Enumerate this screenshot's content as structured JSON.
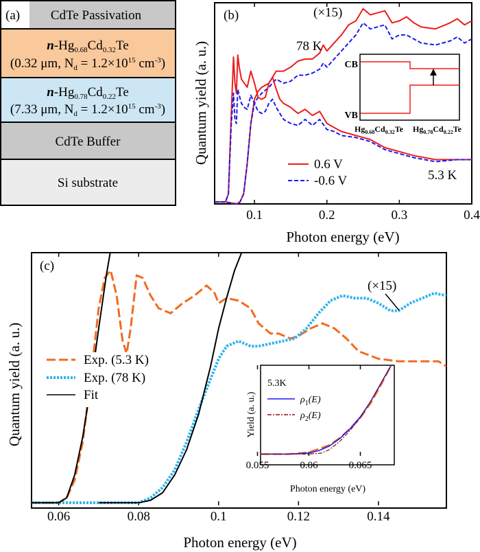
{
  "panel_a": {
    "label": "(a)",
    "layers": [
      {
        "name": "CdTe Passivation",
        "color": "#c8c8c8"
      },
      {
        "prefix": "n",
        "name_parts": [
          "-Hg",
          "0.68",
          "Cd",
          "0.32",
          "Te"
        ],
        "detail_parts": [
          "(0.32 μm, N",
          "d",
          " = 1.2×10",
          "15",
          " cm",
          "-3",
          ")"
        ],
        "color": "#f9c89b"
      },
      {
        "prefix": "n",
        "name_parts": [
          "-Hg",
          "0.78",
          "Cd",
          "0.22",
          "Te"
        ],
        "detail_parts": [
          "(7.33 μm, N",
          "d",
          " = 1.2×10",
          "15",
          " cm",
          "-3",
          ")"
        ],
        "color": "#cde6f4"
      },
      {
        "name": "CdTe Buffer",
        "color": "#c8c8c8"
      },
      {
        "name": "Si substrate",
        "color": "#ececec"
      }
    ]
  },
  "chart_data": [
    {
      "id": "b",
      "type": "line",
      "panel_label": "(b)",
      "xlabel": "Photon energy (eV)",
      "ylabel": "Quantum yield (a. u.)",
      "xlim": [
        0.045,
        0.4
      ],
      "ylim": [
        0,
        1
      ],
      "xticks": [
        "0.1",
        "0.2",
        "0.3",
        "0.4"
      ],
      "xtick_values": [
        0.1,
        0.2,
        0.3,
        0.4
      ],
      "annotations": {
        "scale": "(×15)",
        "t78": "78 K",
        "t53": "5.3 K"
      },
      "legend": {
        "placement": "bottom-center",
        "entries": [
          "0.6 V",
          "-0.6 V"
        ]
      },
      "colors": {
        "pos": "#ee1c1c",
        "neg": "#1a1aee"
      },
      "series": [
        {
          "name": "0.6 V",
          "group": "78 K",
          "style": "solid",
          "color": "#ee1c1c",
          "x": [
            0.045,
            0.06,
            0.075,
            0.08,
            0.085,
            0.09,
            0.095,
            0.1,
            0.105,
            0.11,
            0.12,
            0.13,
            0.14,
            0.15,
            0.16,
            0.17,
            0.18,
            0.19,
            0.195,
            0.2,
            0.21,
            0.22,
            0.23,
            0.24,
            0.25,
            0.26,
            0.27,
            0.28,
            0.29,
            0.3,
            0.31,
            0.32,
            0.33,
            0.35,
            0.37,
            0.38,
            0.39,
            0.4
          ],
          "y": [
            0.01,
            0.01,
            0.0,
            0.01,
            0.05,
            0.2,
            0.4,
            0.52,
            0.56,
            0.58,
            0.6,
            0.66,
            0.66,
            0.68,
            0.71,
            0.72,
            0.72,
            0.75,
            0.79,
            0.76,
            0.8,
            0.84,
            0.89,
            0.91,
            0.97,
            0.94,
            0.95,
            0.96,
            0.9,
            0.91,
            0.93,
            0.9,
            0.88,
            0.87,
            0.9,
            0.92,
            0.89,
            0.91
          ]
        },
        {
          "name": "-0.6 V",
          "group": "78 K",
          "style": "dashed",
          "color": "#1a1aee",
          "x": [
            0.045,
            0.06,
            0.075,
            0.08,
            0.085,
            0.09,
            0.095,
            0.1,
            0.105,
            0.11,
            0.12,
            0.13,
            0.14,
            0.15,
            0.16,
            0.17,
            0.18,
            0.19,
            0.195,
            0.2,
            0.21,
            0.22,
            0.23,
            0.24,
            0.25,
            0.26,
            0.27,
            0.28,
            0.29,
            0.3,
            0.31,
            0.32,
            0.33,
            0.35,
            0.37,
            0.38,
            0.39,
            0.4
          ],
          "y": [
            0.01,
            0.01,
            0.0,
            0.01,
            0.05,
            0.2,
            0.4,
            0.5,
            0.53,
            0.55,
            0.58,
            0.62,
            0.6,
            0.61,
            0.64,
            0.64,
            0.65,
            0.67,
            0.7,
            0.68,
            0.72,
            0.76,
            0.8,
            0.84,
            0.9,
            0.87,
            0.88,
            0.89,
            0.82,
            0.84,
            0.84,
            0.82,
            0.8,
            0.79,
            0.81,
            0.83,
            0.8,
            0.82
          ]
        },
        {
          "name": "0.6 V",
          "group": "5.3 K",
          "style": "solid",
          "color": "#ee1c1c",
          "x": [
            0.045,
            0.06,
            0.064,
            0.068,
            0.071,
            0.073,
            0.075,
            0.077,
            0.079,
            0.082,
            0.086,
            0.09,
            0.095,
            0.1,
            0.105,
            0.11,
            0.115,
            0.12,
            0.125,
            0.13,
            0.135,
            0.14,
            0.15,
            0.16,
            0.17,
            0.18,
            0.19,
            0.2,
            0.21,
            0.22,
            0.24,
            0.26,
            0.28,
            0.3,
            0.32,
            0.35,
            0.38,
            0.4
          ],
          "y": [
            0.01,
            0.01,
            0.05,
            0.45,
            0.73,
            0.6,
            0.55,
            0.74,
            0.68,
            0.62,
            0.6,
            0.58,
            0.66,
            0.6,
            0.53,
            0.52,
            0.53,
            0.6,
            0.63,
            0.57,
            0.52,
            0.5,
            0.48,
            0.45,
            0.47,
            0.44,
            0.46,
            0.4,
            0.38,
            0.36,
            0.34,
            0.32,
            0.28,
            0.26,
            0.24,
            0.22,
            0.22,
            0.22
          ]
        },
        {
          "name": "-0.6 V",
          "group": "5.3 K",
          "style": "dashed",
          "color": "#1a1aee",
          "x": [
            0.045,
            0.06,
            0.064,
            0.068,
            0.071,
            0.073,
            0.075,
            0.077,
            0.079,
            0.082,
            0.086,
            0.09,
            0.095,
            0.1,
            0.105,
            0.11,
            0.115,
            0.12,
            0.125,
            0.13,
            0.135,
            0.14,
            0.15,
            0.16,
            0.17,
            0.18,
            0.19,
            0.2,
            0.21,
            0.22,
            0.24,
            0.26,
            0.28,
            0.3,
            0.32,
            0.35,
            0.38,
            0.4
          ],
          "y": [
            0.01,
            0.01,
            0.05,
            0.4,
            0.55,
            0.42,
            0.4,
            0.57,
            0.54,
            0.5,
            0.48,
            0.47,
            0.54,
            0.5,
            0.46,
            0.45,
            0.46,
            0.5,
            0.52,
            0.48,
            0.45,
            0.42,
            0.4,
            0.39,
            0.42,
            0.39,
            0.42,
            0.37,
            0.36,
            0.34,
            0.33,
            0.31,
            0.27,
            0.25,
            0.23,
            0.21,
            0.22,
            0.22
          ]
        }
      ],
      "inset": {
        "cb": "CB",
        "vb": "VB",
        "left_parts": [
          "Hg",
          "0.68",
          "Cd",
          "0.32",
          "Te"
        ],
        "right_parts": [
          "Hg",
          "0.78",
          "Cd",
          "0.22",
          "Te"
        ]
      }
    },
    {
      "id": "c",
      "type": "line",
      "panel_label": "(c)",
      "xlabel": "Photon energy (eV)",
      "ylabel": "Quantum yield (a. u.)",
      "xlim": [
        0.0532,
        0.157
      ],
      "ylim": [
        0,
        1
      ],
      "xticks": [
        "0.06",
        "0.08",
        "0.1",
        "0.12",
        "0.14"
      ],
      "xtick_values": [
        0.06,
        0.08,
        0.1,
        0.12,
        0.14
      ],
      "annotations": {
        "scale": "(×15)"
      },
      "legend": {
        "placement": "middle-left",
        "entries": [
          "Exp. (5.3 K)",
          "Exp. (78 K)",
          "Fit"
        ]
      },
      "series": [
        {
          "name": "Exp. (5.3 K)",
          "style": "longdash",
          "color": "#f26a1f",
          "x": [
            0.0532,
            0.06,
            0.062,
            0.064,
            0.066,
            0.068,
            0.07,
            0.0715,
            0.073,
            0.0745,
            0.076,
            0.077,
            0.078,
            0.0795,
            0.081,
            0.083,
            0.085,
            0.088,
            0.091,
            0.094,
            0.097,
            0.099,
            0.1,
            0.102,
            0.105,
            0.108,
            0.11,
            0.113,
            0.115,
            0.118,
            0.12,
            0.123,
            0.126,
            0.129,
            0.132,
            0.135,
            0.14,
            0.145,
            0.15,
            0.155,
            0.157
          ],
          "y": [
            0.01,
            0.01,
            0.03,
            0.1,
            0.25,
            0.5,
            0.78,
            0.9,
            0.93,
            0.83,
            0.65,
            0.6,
            0.7,
            0.91,
            0.9,
            0.83,
            0.78,
            0.76,
            0.8,
            0.83,
            0.87,
            0.84,
            0.8,
            0.82,
            0.81,
            0.78,
            0.72,
            0.68,
            0.68,
            0.66,
            0.67,
            0.7,
            0.72,
            0.7,
            0.66,
            0.61,
            0.58,
            0.57,
            0.57,
            0.57,
            0.55
          ]
        },
        {
          "name": "Exp. (78 K)",
          "style": "dotted",
          "color": "#2ab3ee",
          "x": [
            0.0532,
            0.07,
            0.08,
            0.083,
            0.086,
            0.089,
            0.092,
            0.095,
            0.098,
            0.1,
            0.102,
            0.105,
            0.108,
            0.11,
            0.113,
            0.116,
            0.119,
            0.122,
            0.125,
            0.128,
            0.131,
            0.134,
            0.137,
            0.14,
            0.143,
            0.145,
            0.148,
            0.151,
            0.154,
            0.157
          ],
          "y": [
            0.01,
            0.01,
            0.01,
            0.03,
            0.07,
            0.14,
            0.25,
            0.38,
            0.5,
            0.58,
            0.63,
            0.65,
            0.63,
            0.63,
            0.64,
            0.65,
            0.66,
            0.7,
            0.76,
            0.81,
            0.83,
            0.82,
            0.82,
            0.8,
            0.77,
            0.77,
            0.8,
            0.82,
            0.84,
            0.83
          ]
        },
        {
          "name": "Fit",
          "style": "solid",
          "color": "#000000",
          "x": [
            0.0532,
            0.06,
            0.062,
            0.064,
            0.066,
            0.068,
            0.07,
            0.072,
            0.074
          ],
          "y": [
            0.01,
            0.01,
            0.03,
            0.12,
            0.27,
            0.47,
            0.7,
            0.92,
            1.1
          ]
        },
        {
          "name": "Fit",
          "style": "solid",
          "color": "#000000",
          "x": [
            0.07,
            0.08,
            0.083,
            0.086,
            0.089,
            0.092,
            0.095,
            0.098,
            0.1,
            0.102,
            0.104,
            0.107
          ],
          "y": [
            0.01,
            0.01,
            0.02,
            0.05,
            0.12,
            0.22,
            0.36,
            0.55,
            0.7,
            0.82,
            0.93,
            1.05
          ]
        }
      ],
      "inset": {
        "title": "5.3K",
        "xlabel": "Photon energy (eV)",
        "ylabel": "Yield (a. u.)",
        "xlim": [
          0.0553,
          0.0683
        ],
        "ylim": [
          0,
          1
        ],
        "xticks": [
          "0.055",
          "0.06",
          "0.065"
        ],
        "xtick_values": [
          0.055,
          0.06,
          0.065
        ],
        "legend": [
          {
            "sym": "ρ",
            "sub": "1",
            "arg": "(E)"
          },
          {
            "sym": "ρ",
            "sub": "2",
            "arg": "(E)"
          }
        ],
        "series": [
          {
            "name": "Exp.",
            "style": "longdash",
            "color": "#f26a1f",
            "x": [
              0.0553,
              0.058,
              0.06,
              0.062,
              0.063,
              0.064,
              0.065,
              0.066,
              0.067,
              0.068
            ],
            "y": [
              0.02,
              0.02,
              0.04,
              0.12,
              0.2,
              0.3,
              0.42,
              0.58,
              0.78,
              1.0
            ]
          },
          {
            "name": "ρ1(E)",
            "style": "solid",
            "color": "#1a1aee",
            "x": [
              0.0553,
              0.058,
              0.06,
              0.061,
              0.062,
              0.063,
              0.064,
              0.065,
              0.066,
              0.067,
              0.068
            ],
            "y": [
              0.02,
              0.02,
              0.03,
              0.06,
              0.11,
              0.19,
              0.3,
              0.43,
              0.6,
              0.8,
              1.0
            ]
          },
          {
            "name": "ρ2(E)",
            "style": "dashdot",
            "color": "#8b1010",
            "x": [
              0.0553,
              0.058,
              0.06,
              0.0612,
              0.062,
              0.063,
              0.064,
              0.065,
              0.066,
              0.067,
              0.068
            ],
            "y": [
              0.02,
              0.02,
              0.02,
              0.03,
              0.07,
              0.16,
              0.28,
              0.42,
              0.6,
              0.8,
              1.0
            ]
          }
        ]
      }
    }
  ]
}
